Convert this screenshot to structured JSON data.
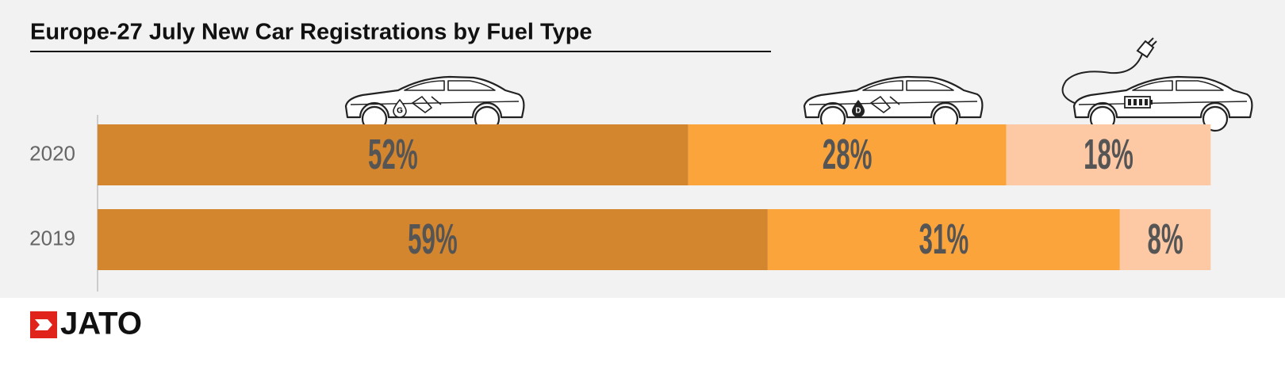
{
  "chart_data": {
    "type": "stacked-bar",
    "title": "Europe-27 July New Car Registrations by Fuel Type",
    "categories": [
      "2020",
      "2019"
    ],
    "series": [
      {
        "color": "#d4862e",
        "values": [
          52,
          59
        ],
        "value_labels": [
          "52%",
          "59%"
        ]
      },
      {
        "color": "#fca43c",
        "values": [
          28,
          31
        ],
        "value_labels": [
          "28%",
          "31%"
        ]
      },
      {
        "color": "#fdc9a5",
        "values": [
          18,
          8
        ],
        "value_labels": [
          "18%",
          "8%"
        ]
      }
    ]
  },
  "icon_labels": [
    "G",
    "D"
  ],
  "logo": "JATO"
}
